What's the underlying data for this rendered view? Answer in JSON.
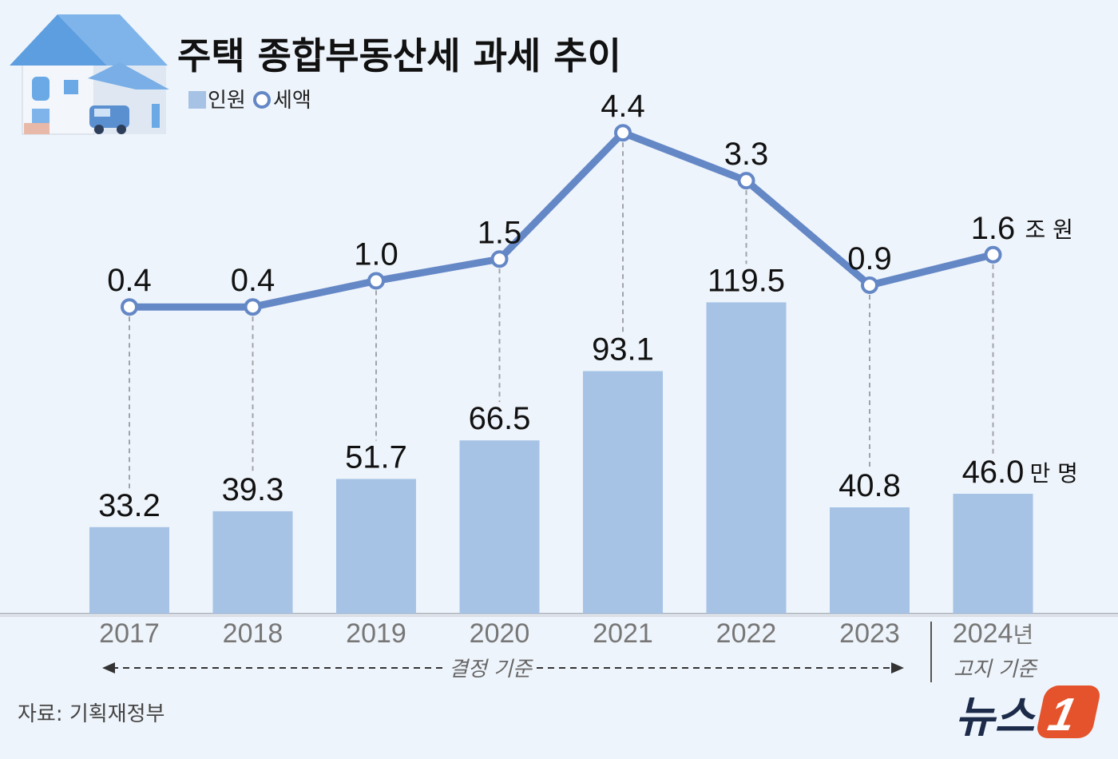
{
  "header": {
    "title": "주택 종합부동산세 과세 추이",
    "legend": [
      {
        "label": "인원",
        "symbol": "bar"
      },
      {
        "label": "세액",
        "symbol": "line"
      }
    ]
  },
  "chart_data": {
    "type": "bar+line",
    "title": "주택 종합부동산세 과세 추이",
    "categories": [
      "2017",
      "2018",
      "2019",
      "2020",
      "2021",
      "2022",
      "2023",
      "2024"
    ],
    "category_suffix_last": "년",
    "series": [
      {
        "name": "인원",
        "type": "bar",
        "unit": "만 명",
        "values": [
          33.2,
          39.3,
          51.7,
          66.5,
          93.1,
          119.5,
          40.8,
          46.0
        ]
      },
      {
        "name": "세액",
        "type": "line",
        "unit": "조 원",
        "values": [
          0.4,
          0.4,
          1.0,
          1.5,
          4.4,
          3.3,
          0.9,
          1.6
        ]
      }
    ],
    "value_labels_bar": [
      "33.2",
      "39.3",
      "51.7",
      "66.5",
      "93.1",
      "119.5",
      "40.8",
      "46.0"
    ],
    "value_labels_line": [
      "0.4",
      "0.4",
      "1.0",
      "1.5",
      "4.4",
      "3.3",
      "0.9",
      "1.6"
    ],
    "bar_unit_label": "만 명",
    "line_unit_label": "조 원",
    "periods": [
      {
        "label": "결정 기준",
        "from": "2017",
        "to": "2023"
      },
      {
        "label": "고지 기준",
        "from": "2024",
        "to": "2024"
      }
    ],
    "colors": {
      "bar": "#a6c3e6",
      "line": "#6487c6",
      "background": "#eef4fb"
    }
  },
  "footer": {
    "source": "자료: 기획재정부",
    "logo": "뉴스1"
  }
}
